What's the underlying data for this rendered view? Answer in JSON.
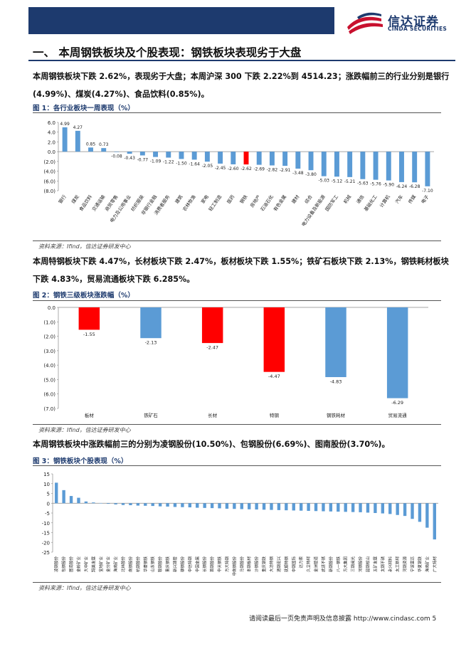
{
  "header": {
    "logo_cn": "信达证券",
    "logo_en": "CINDA SECURITIES"
  },
  "section_title": "一、 本周钢铁板块及个股表现：钢铁板块表现劣于大盘",
  "para1": "本周钢铁板块下跌 2.62%，表现劣于大盘；本周沪深 300 下跌 2.22%到 4514.23；涨跌幅前三的行业分别是银行(4.99%)、煤炭(4.27%)、食品饮料(0.85%)。",
  "para2": "本周特钢板块下跌 4.47%，长材板块下跌 2.47%，板材板块下跌 1.55%；铁矿石板块下跌 2.13%，钢铁耗材板块下跌 4.83%，贸易流通板块下跌 6.285%。",
  "para3": "本周钢铁板块中涨跌幅前三的分别为凌钢股份(10.50%)、包钢股份(6.69%)、图南股份(3.70%)。",
  "source_text": "资料来源：Ifind，信达证券研发中心",
  "footer": "请阅读最后一页免责声明及信息披露 http://www.cindasc.com 5",
  "colors": {
    "blue": "#5b9bd5",
    "red": "#ff0000",
    "navy": "#1d3a6e"
  },
  "chart_data": [
    {
      "type": "bar",
      "title": "图 1：各行业板块一周表现（%）",
      "ylim": [
        -8,
        6
      ],
      "yticks": [
        "6.0",
        "4.0",
        "2.0",
        "0.0",
        "(2.0)",
        "(4.0)",
        "(6.0)",
        "(8.0)"
      ],
      "highlight": "钢铁",
      "categories": [
        "银行",
        "煤炭",
        "食品饮料",
        "交通运输",
        "商贸零售",
        "电力及公用事业",
        "纺织服装",
        "非银行金融",
        "消费者服务",
        "建筑",
        "农林牧渔",
        "家电",
        "轻工制造",
        "医药",
        "钢铁",
        "房地产",
        "石油石化",
        "有色金属",
        "建材",
        "综合",
        "电力设备及新能源",
        "国防军工",
        "机械",
        "通信",
        "基础化工",
        "计算机",
        "汽车",
        "传媒",
        "电子"
      ],
      "values": [
        4.99,
        4.27,
        0.85,
        0.73,
        -0.08,
        -0.43,
        -0.77,
        -1.09,
        -1.22,
        -1.5,
        -1.64,
        -2.05,
        -2.45,
        -2.6,
        -2.62,
        -2.69,
        -2.82,
        -2.91,
        -3.48,
        -3.8,
        -5.03,
        -5.12,
        -5.21,
        -5.63,
        -5.76,
        -5.9,
        -6.24,
        -6.28,
        -7.1
      ],
      "labels": [
        "4.99",
        "4.27",
        "0.85",
        "0.73",
        "-0.08",
        "-0.43",
        "-0.77",
        "-1.09",
        "-1.22",
        "-1.50",
        "-1.64",
        "-2.05",
        "-2.45",
        "-2.60",
        "-2.62",
        "-2.69",
        "-2.82",
        "-2.91",
        "-3.48",
        "-3.80",
        "-5.03",
        "-5.12",
        "-5.21",
        "-5.63",
        "-5.76",
        "-5.90",
        "-6.24",
        "-6.28",
        "-7.10"
      ]
    },
    {
      "type": "bar",
      "title": "图 2：钢铁三级板块涨跌幅（%）",
      "ylim": [
        -7,
        0
      ],
      "yticks": [
        "0.0",
        "(1.0)",
        "(2.0)",
        "(3.0)",
        "(4.0)",
        "(5.0)",
        "(6.0)",
        "(7.0)"
      ],
      "categories": [
        "板材",
        "铁矿石",
        "长材",
        "特钢",
        "钢铁耗材",
        "贸易流通"
      ],
      "values": [
        -1.55,
        -2.13,
        -2.47,
        -4.47,
        -4.83,
        -6.29
      ],
      "labels": [
        "-1.55",
        "-2.13",
        "-2.47",
        "-4.47",
        "-4.83",
        "-6.29"
      ],
      "bar_colors": [
        "#ff0000",
        "#5b9bd5",
        "#ff0000",
        "#ff0000",
        "#5b9bd5",
        "#5b9bd5"
      ]
    },
    {
      "type": "bar",
      "title": "图 3：钢铁板块个股表现（%）",
      "ylim": [
        -25,
        15
      ],
      "yticks": [
        "15",
        "10",
        "5",
        "0",
        "-5",
        "-10",
        "-15",
        "-20",
        "-25"
      ],
      "categories": [
        "凌钢股份",
        "包钢股份",
        "图南股份",
        "金岭矿业",
        "大中矿业",
        "翔美发展",
        "宝地矿业",
        "金分矿业",
        "海南矿业",
        "北纬股份",
        "南钢股份",
        "杭钢股份",
        "华菱钢铁",
        "山东钢铁",
        "鞍钢股份",
        "重庆钢铁",
        "新兴铸管",
        "柳钢股份",
        "中信特钢",
        "中国金属",
        "长钢股份",
        "首钢股份",
        "中天钢铁",
        "方大特钢",
        "中南钢股份",
        "马钢股份",
        "本钢板材",
        "沙钢股份",
        "重庆钢铁",
        "大冶特钢",
        "酒钢宏兴",
        "抚顺特钢",
        "中钢国际",
        "达力索",
        "久立特材",
        "金洲管道",
        "武进不锈",
        "新钢股份",
        "八一钢铁",
        "方大集团",
        "三钢闽光",
        "河钢股份",
        "韶钢松山",
        "五矿发展",
        "太钢不锈",
        "永兴材料",
        "太工新材",
        "河钢资源",
        "宁波富达",
        "华夏钢铁",
        "海南矿业",
        "广大特材"
      ],
      "values": [
        10.5,
        6.69,
        3.7,
        2.8,
        0.9,
        0.4,
        0.1,
        -0.3,
        -0.6,
        -0.9,
        -1.0,
        -1.2,
        -1.3,
        -1.4,
        -1.6,
        -1.7,
        -1.9,
        -2.0,
        -2.1,
        -2.3,
        -2.4,
        -2.5,
        -2.6,
        -2.8,
        -2.9,
        -3.0,
        -3.1,
        -3.2,
        -3.3,
        -3.4,
        -3.5,
        -3.6,
        -3.7,
        -3.8,
        -3.9,
        -4.0,
        -4.1,
        -4.2,
        -4.3,
        -4.4,
        -4.5,
        -4.6,
        -4.8,
        -5.0,
        -5.2,
        -5.5,
        -6.0,
        -6.5,
        -8.0,
        -9.5,
        -12.5,
        -18.5
      ]
    }
  ]
}
